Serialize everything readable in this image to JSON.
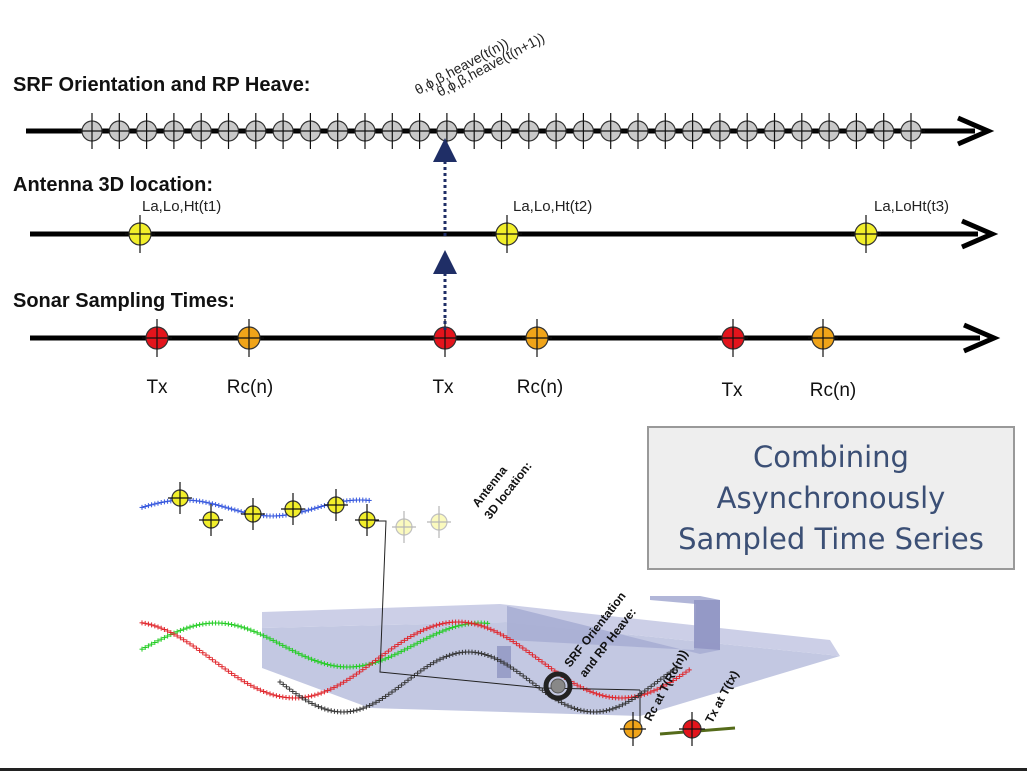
{
  "headers": {
    "srf": "SRF Orientation and RP Heave:",
    "antenna": "Antenna 3D location:",
    "sonar": "Sonar Sampling Times:"
  },
  "srf_labels": {
    "line1": "θ,ϕ,β,heave(t(n))",
    "line2": "θ,ϕ,β,heave(t(n+1))"
  },
  "antenna_labels": [
    "La,Lo,Ht(t1)",
    "La,Lo,Ht(t2)",
    "La,LoHt(t3)"
  ],
  "sonar_labels": [
    "Tx",
    "Rc(n)",
    "Tx",
    "Rc(n)",
    "Tx",
    "Rc(n)"
  ],
  "box_text": [
    "Combining",
    "Asynchronously",
    "Sampled Time Series"
  ],
  "bottom_labels": {
    "antenna": [
      "Antenna",
      "3D location:"
    ],
    "srf": [
      "SRF Orientation",
      "and RP Heave:"
    ],
    "rc": "Rc at T(Rc(n))",
    "tx": "Tx at T(tx)"
  },
  "colors": {
    "srf_marker": "#c8c8c8",
    "antenna_marker": "#f2ef2a",
    "tx_marker": "#e3141c",
    "rc_marker": "#f0a419",
    "arrow_dotted": "#1f2e66",
    "box_text": "#3b4f75",
    "trace_blue": "#3355dd",
    "trace_green": "#22cc22",
    "trace_red": "#e0242a",
    "trace_black": "#333333",
    "vessel": "#b9bedd"
  }
}
